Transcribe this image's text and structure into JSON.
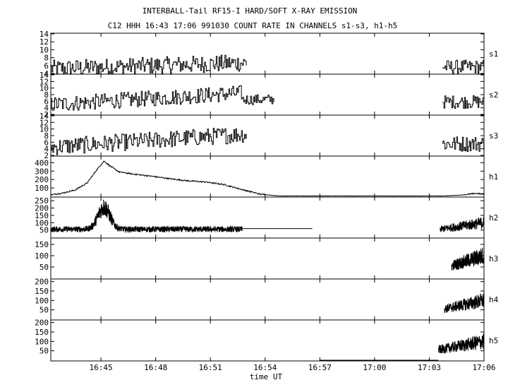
{
  "chart_data": {
    "type": "line",
    "title": "INTERBALL-Tail RF15-I HARD/SOFT X-RAY EMISSION",
    "subtitle": "C12 HHH 16:43 17:06 991030  COUNT RATE IN CHANNELS s1-s3, h1-h5",
    "xlabel": "time UT",
    "x_ticks": [
      {
        "t": 165,
        "label": "16:45"
      },
      {
        "t": 345,
        "label": "16:48"
      },
      {
        "t": 525,
        "label": "16:51"
      },
      {
        "t": 705,
        "label": "16:54"
      },
      {
        "t": 885,
        "label": "16:57"
      },
      {
        "t": 1065,
        "label": "17:00"
      },
      {
        "t": 1245,
        "label": "17:03"
      },
      {
        "t": 1425,
        "label": "17:06"
      }
    ],
    "x_range_seconds_after_16_43": [
      0,
      1425
    ],
    "panels": [
      {
        "name": "s1",
        "ylim": [
          4,
          14
        ],
        "yticks": [
          "4",
          "6",
          "8",
          "10",
          "12",
          "14"
        ],
        "yticks_values": [
          4,
          6,
          8,
          10,
          12,
          14
        ],
        "segments": [
          {
            "start": 0,
            "end": 645,
            "base": 5.2,
            "growth": 1.5,
            "noise": 2.2
          },
          {
            "start": 1290,
            "end": 1425,
            "base": 5.6,
            "growth": 0,
            "noise": 1.8
          }
        ]
      },
      {
        "name": "s2",
        "ylim": [
          2,
          14
        ],
        "yticks": [
          "2",
          "4",
          "6",
          "8",
          "10",
          "12",
          "14"
        ],
        "yticks_values": [
          2,
          4,
          6,
          8,
          10,
          12,
          14
        ],
        "segments": [
          {
            "start": 0,
            "end": 628,
            "base": 5.0,
            "growth": 3.5,
            "noise": 2.4
          },
          {
            "start": 628,
            "end": 735,
            "base": 6.5,
            "growth": 0,
            "noise": 1.6
          },
          {
            "start": 1290,
            "end": 1425,
            "base": 5.8,
            "growth": 0,
            "noise": 2.0
          }
        ]
      },
      {
        "name": "s3",
        "ylim": [
          2,
          14
        ],
        "yticks": [
          "2",
          "4",
          "6",
          "8",
          "10",
          "12",
          "14"
        ],
        "yticks_values": [
          2,
          4,
          6,
          8,
          10,
          12,
          14
        ],
        "segments": [
          {
            "start": 0,
            "end": 645,
            "base": 4.5,
            "growth": 4.0,
            "noise": 2.6
          },
          {
            "start": 1290,
            "end": 1425,
            "base": 5.5,
            "growth": 0,
            "noise": 2.4
          }
        ]
      },
      {
        "name": "h1",
        "ylim": [
          0,
          470
        ],
        "yticks": [
          "100",
          "200",
          "300",
          "400"
        ],
        "yticks_values": [
          100,
          200,
          300,
          400
        ],
        "profile": [
          [
            0,
            18
          ],
          [
            40,
            40
          ],
          [
            80,
            75
          ],
          [
            120,
            160
          ],
          [
            150,
            310
          ],
          [
            175,
            420
          ],
          [
            195,
            360
          ],
          [
            225,
            290
          ],
          [
            270,
            265
          ],
          [
            330,
            240
          ],
          [
            390,
            210
          ],
          [
            450,
            185
          ],
          [
            510,
            170
          ],
          [
            570,
            140
          ],
          [
            630,
            80
          ],
          [
            690,
            25
          ],
          [
            750,
            5
          ],
          [
            1290,
            5
          ],
          [
            1350,
            15
          ],
          [
            1400,
            35
          ],
          [
            1425,
            25
          ]
        ],
        "noise": 8
      },
      {
        "name": "h2",
        "ylim": [
          0,
          270
        ],
        "yticks": [
          "50",
          "100",
          "150",
          "200",
          "250"
        ],
        "yticks_values": [
          50,
          100,
          150,
          200,
          250
        ],
        "segments": [
          {
            "start": 0,
            "end": 630,
            "kind": "burst"
          },
          {
            "start": 1280,
            "end": 1425,
            "kind": "rise"
          }
        ],
        "flat_lines": [
          {
            "start": 630,
            "end": 860,
            "value": 60
          }
        ]
      },
      {
        "name": "h3",
        "ylim": [
          0,
          175
        ],
        "yticks": [
          "50",
          "100",
          "150"
        ],
        "yticks_values": [
          50,
          100,
          150
        ],
        "segments": [
          {
            "start": 1318,
            "end": 1425,
            "kind": "rise"
          }
        ]
      },
      {
        "name": "h4",
        "ylim": [
          0,
          210
        ],
        "yticks": [
          "50",
          "100",
          "150",
          "200"
        ],
        "yticks_values": [
          50,
          100,
          150,
          200
        ],
        "segments": [
          {
            "start": 1295,
            "end": 1425,
            "kind": "rise"
          }
        ]
      },
      {
        "name": "h5",
        "ylim": [
          0,
          210
        ],
        "yticks": [
          "50",
          "100",
          "150",
          "200"
        ],
        "yticks_values": [
          50,
          100,
          150,
          200
        ],
        "segments": [
          {
            "start": 1275,
            "end": 1425,
            "kind": "rise"
          }
        ],
        "flat_lines": [
          {
            "start": 885,
            "end": 1275,
            "value": 0
          }
        ]
      }
    ],
    "grid": false
  }
}
